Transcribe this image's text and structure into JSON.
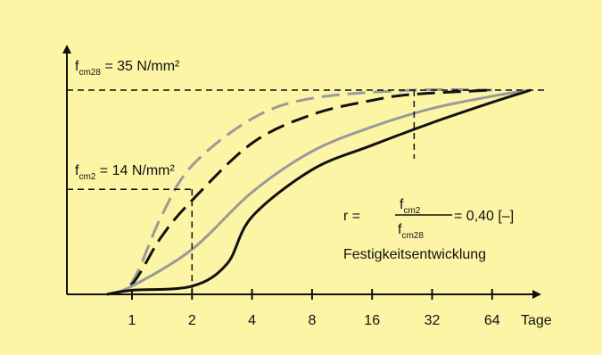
{
  "chart_data": {
    "type": "line",
    "x_scale": "log2",
    "x_ticks": [
      "1",
      "2",
      "4",
      "8",
      "16",
      "32",
      "64"
    ],
    "x_unit": "Tage",
    "y_ticks_shown": false,
    "grid": false,
    "series": [
      {
        "color": "#9a9a9a",
        "dash": "long-dash",
        "points": [
          [
            0.75,
            0
          ],
          [
            1,
            0.06
          ],
          [
            1.4,
            0.38
          ],
          [
            2,
            0.63
          ],
          [
            4,
            0.86
          ],
          [
            8,
            0.96
          ],
          [
            26,
            1.0
          ],
          [
            64,
            1.0
          ]
        ]
      },
      {
        "color": "#111111",
        "dash": "long-dash",
        "points": [
          [
            0.75,
            0
          ],
          [
            1,
            0.05
          ],
          [
            1.4,
            0.28
          ],
          [
            2,
            0.46
          ],
          [
            4,
            0.74
          ],
          [
            8,
            0.88
          ],
          [
            16,
            0.95
          ],
          [
            26,
            0.98
          ],
          [
            64,
            1.0
          ]
        ]
      },
      {
        "color": "#9a9a9a",
        "dash": "solid",
        "points": [
          [
            0.75,
            0
          ],
          [
            1,
            0.04
          ],
          [
            2,
            0.22
          ],
          [
            4,
            0.5
          ],
          [
            8,
            0.7
          ],
          [
            16,
            0.82
          ],
          [
            32,
            0.91
          ],
          [
            64,
            0.97
          ],
          [
            100,
            1.0
          ]
        ]
      },
      {
        "color": "#111111",
        "dash": "solid",
        "points": [
          [
            0.75,
            0
          ],
          [
            1,
            0.02
          ],
          [
            2,
            0.04
          ],
          [
            3,
            0.15
          ],
          [
            4,
            0.38
          ],
          [
            8,
            0.61
          ],
          [
            16,
            0.73
          ],
          [
            32,
            0.84
          ],
          [
            64,
            0.94
          ],
          [
            100,
            1.0
          ]
        ]
      }
    ],
    "annotations": {
      "fcm28": {
        "pre": "f",
        "sub": "cm28",
        "post": " = 35 N/mm²"
      },
      "fcm2": {
        "pre": "f",
        "sub": "cm2",
        "post": " = 14 N/mm²"
      },
      "ratio": {
        "pre": "r = ",
        "num": "f",
        "num_sub": "cm2",
        "den": "f",
        "den_sub": "cm28",
        "post": " = 0,40 [–]"
      },
      "caption": "Festigkeitsentwicklung"
    },
    "reference_lines": [
      {
        "label": "fcm28",
        "y": 1.0
      },
      {
        "label": "fcm2",
        "x": 2,
        "y": 0.4
      }
    ]
  }
}
